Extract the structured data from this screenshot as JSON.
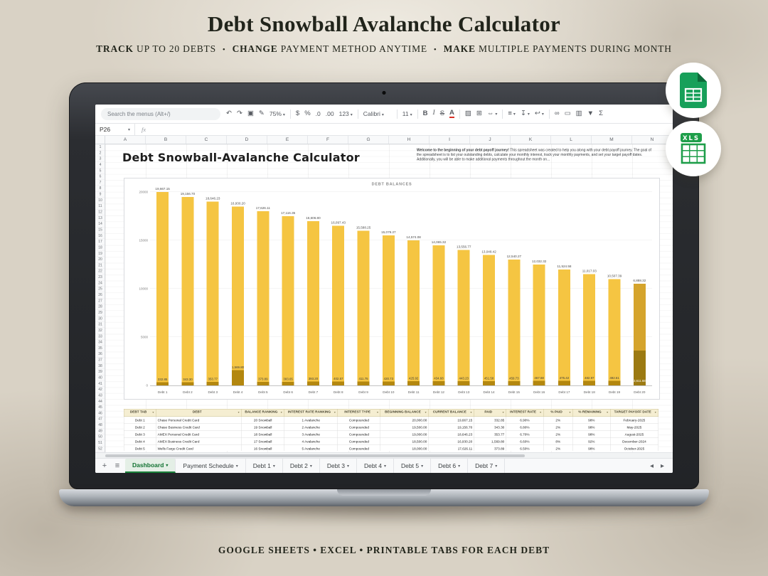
{
  "header": {
    "title": "Debt Snowball Avalanche Calculator",
    "sub": {
      "b1": "TRACK",
      "t1": " UP TO 20 DEBTS",
      "b2": "CHANGE",
      "t2": " PAYMENT METHOD ANYTIME",
      "b3": "MAKE",
      "t3": " MULTIPLE PAYMENTS DURING MONTH",
      "sep": "•"
    }
  },
  "footer": {
    "caption": "GOOGLE SHEETS • EXCEL • PRINTABLE TABS FOR EACH DEBT"
  },
  "badges": {
    "xls_label": "XLS"
  },
  "sheets_ui": {
    "toolbar": {
      "search_placeholder": "Search the menus (Alt+/)",
      "groups": [
        {
          "items": [
            {
              "g": "↶",
              "n": "undo-icon"
            },
            {
              "g": "↷",
              "n": "redo-icon"
            },
            {
              "g": "▣",
              "n": "print-icon"
            },
            {
              "g": "✎",
              "n": "paint-format-icon"
            },
            {
              "g": "75%",
              "n": "zoom-select",
              "caret": true,
              "cls": "txt"
            }
          ]
        },
        {
          "items": [
            {
              "g": "$",
              "n": "currency-format-button"
            },
            {
              "g": "%",
              "n": "percent-format-button"
            },
            {
              "g": ".0",
              "n": "decrease-decimals-button",
              "cls": "txt"
            },
            {
              "g": ".00",
              "n": "increase-decimals-button",
              "cls": "txt"
            },
            {
              "g": "123",
              "n": "number-format-button",
              "caret": true,
              "cls": "txt"
            }
          ]
        },
        {
          "items": [
            {
              "g": "Calibri",
              "n": "font-family-select",
              "caret": true,
              "cls": "txt wide"
            }
          ]
        },
        {
          "items": [
            {
              "g": "11",
              "n": "font-size-select",
              "caret": true,
              "cls": "txt"
            }
          ]
        },
        {
          "items": [
            {
              "g": "B",
              "n": "bold-button",
              "cls": "b"
            },
            {
              "g": "I",
              "n": "italic-button",
              "cls": "i"
            },
            {
              "g": "S",
              "n": "strikethrough-button",
              "cls": "s"
            },
            {
              "g": "A",
              "n": "text-color-button",
              "cls": "a"
            }
          ]
        },
        {
          "items": [
            {
              "g": "▨",
              "n": "fill-color-button"
            },
            {
              "g": "⊞",
              "n": "borders-button"
            },
            {
              "g": "⇔",
              "n": "merge-cells-button",
              "caret": true
            }
          ]
        },
        {
          "items": [
            {
              "g": "≡",
              "n": "horizontal-align-button",
              "caret": true
            },
            {
              "g": "↧",
              "n": "vertical-align-button",
              "caret": true
            },
            {
              "g": "↩",
              "n": "text-wrap-button",
              "caret": true
            }
          ]
        },
        {
          "items": [
            {
              "g": "∞",
              "n": "insert-link-button"
            },
            {
              "g": "▭",
              "n": "insert-comment-button"
            },
            {
              "g": "▥",
              "n": "insert-chart-button"
            },
            {
              "g": "▼",
              "n": "create-filter-button"
            },
            {
              "g": "Σ",
              "n": "functions-button"
            }
          ]
        }
      ]
    },
    "name_box": "P26",
    "fx_label": "fx",
    "ui": {
      "caret": "▾",
      "filter": "▼",
      "scroll_left": "◂",
      "scroll_right": "▸"
    },
    "columns": [
      "A",
      "B",
      "C",
      "D",
      "E",
      "F",
      "G",
      "H",
      "I",
      "J",
      "K",
      "L",
      "M",
      "N"
    ],
    "row_numbers": [
      1,
      2,
      3,
      4,
      5,
      6,
      7,
      8,
      9,
      10,
      11,
      12,
      13,
      14,
      15,
      16,
      17,
      18,
      19,
      20,
      21,
      22,
      23,
      24,
      25,
      26,
      27,
      28,
      29,
      30,
      31,
      32,
      33,
      34,
      35,
      36,
      37,
      38,
      39,
      40,
      41,
      42,
      43,
      44,
      45,
      46,
      47,
      48,
      49,
      50,
      51,
      52
    ],
    "sheet_title": "Debt Snowball-Avalanche Calculator",
    "welcome_bold": "Welcome to the beginning of your debt payoff journey!",
    "welcome_rest": " This spreadsheet was created to help you along with your debt payoff journey. The goal of the spreadsheet is to list your outstanding debts, calculate your monthly interest, track your monthly payments, and set your target payoff dates. Additionally, you will be able to make additional payments throughout the month on...",
    "tabs": {
      "add": "+",
      "all": "≡",
      "items": [
        {
          "label": "Dashboard",
          "active": true
        },
        {
          "label": "Payment Schedule",
          "active": false
        },
        {
          "label": "Debt 1",
          "active": false
        },
        {
          "label": "Debt 2",
          "active": false
        },
        {
          "label": "Debt 3",
          "active": false
        },
        {
          "label": "Debt 4",
          "active": false
        },
        {
          "label": "Debt 5",
          "active": false
        },
        {
          "label": "Debt 6",
          "active": false
        },
        {
          "label": "Debt 7",
          "active": false
        }
      ]
    }
  },
  "chart_data": {
    "type": "bar",
    "title": "DEBT BALANCES",
    "categories": [
      "Debt 1",
      "Debt 2",
      "Debt 3",
      "Debt 4",
      "Debt 5",
      "Debt 6",
      "Debt 7",
      "Debt 8",
      "Debt 9",
      "Debt 10",
      "Debt 11",
      "Debt 12",
      "Debt 13",
      "Debt 14",
      "Debt 15",
      "Debt 16",
      "Debt 17",
      "Debt 18",
      "Debt 19",
      "Debt 20"
    ],
    "series": [
      {
        "name": "Paid",
        "values": [
          332.85,
          343.3,
          353.77,
          1569.8,
          373.89,
          383.65,
          393.2,
          402.57,
          411.75,
          420.73,
          425.92,
          434.68,
          443.23,
          451.58,
          459.73,
          467.68,
          475.42,
          482.97,
          492.61,
          3611.68
        ]
      },
      {
        "name": "Current Balance",
        "values": [
          19667.15,
          19156.7,
          18646.23,
          16930.2,
          17626.11,
          17116.35,
          16606.8,
          16097.43,
          15588.25,
          15079.27,
          14574.08,
          14065.32,
          13556.77,
          13048.42,
          12540.27,
          12032.32,
          11524.58,
          11017.03,
          10507.39,
          6888.32
        ]
      }
    ],
    "top_labels": [
      "19,667.15",
      "19,156.70",
      "18,646.23",
      "16,930.20",
      "17,626.11",
      "17,116.35",
      "16,606.80",
      "16,097.43",
      "15,588.25",
      "15,079.27",
      "14,574.08",
      "14,065.32",
      "13,556.77",
      "13,048.42",
      "12,540.27",
      "12,032.32",
      "11,524.58",
      "11,017.03",
      "10,507.39",
      "6,888.32"
    ],
    "paid_labels": [
      "332.85",
      "343.30",
      "353.77",
      "1,569.80",
      "373.89",
      "383.65",
      "393.20",
      "402.57",
      "411.75",
      "420.73",
      "425.92",
      "434.68",
      "443.23",
      "451.58",
      "459.73",
      "467.68",
      "475.42",
      "482.97",
      "492.61",
      "3,611.68"
    ],
    "ylim": [
      0,
      20000
    ],
    "yticks": [
      0,
      5000,
      10000,
      15000,
      20000
    ],
    "ytick_labels": [
      "0",
      "5000",
      "10000",
      "15000",
      "20000"
    ],
    "legend": "none",
    "grid": true,
    "colors": {
      "current": "#F5C542",
      "paid": "#B3870F",
      "last_current": "#D5A42C",
      "last_paid": "#9C7A12"
    }
  },
  "table": {
    "headers": [
      "DEBT TAB",
      "DEBT",
      "BALANCE RANKING",
      "INTEREST RATE RANKING",
      "INTEREST TYPE",
      "BEGINNING BALANCE",
      "CURRENT BALANCE",
      "PAID",
      "INTEREST RATE",
      "% PAID",
      "% REMAINING",
      "TARGET PAYOFF DATE"
    ],
    "rows": [
      [
        "Debt 1",
        "Chase Personal Credit Card",
        "20 Snowball",
        "1 Avalanche",
        "Compounded",
        "20,000.00",
        "19,667.15",
        "332.85",
        "6.90%",
        "2%",
        "98%",
        "February-2025"
      ],
      [
        "Debt 2",
        "Chase Business Credit Card",
        "19 Snowball",
        "2 Avalanche",
        "Compounded",
        "19,500.00",
        "19,156.70",
        "343.30",
        "6.80%",
        "2%",
        "98%",
        "May-2025"
      ],
      [
        "Debt 3",
        "AMEX Personal Credit Card",
        "18 Snowball",
        "3 Avalanche",
        "Compounded",
        "19,000.00",
        "18,646.23",
        "353.77",
        "6.70%",
        "2%",
        "98%",
        "August-2025"
      ],
      [
        "Debt 4",
        "AMEX Business Credit Card",
        "17 Snowball",
        "4 Avalanche",
        "Compounded",
        "18,500.00",
        "16,930.20",
        "1,569.80",
        "6.60%",
        "8%",
        "92%",
        "December-2024"
      ],
      [
        "Debt 5",
        "Wells Fargo Credit Card",
        "16 Snowball",
        "5 Avalanche",
        "Compounded",
        "18,000.00",
        "17,626.11",
        "373.89",
        "6.50%",
        "2%",
        "98%",
        "October-2025"
      ]
    ]
  }
}
